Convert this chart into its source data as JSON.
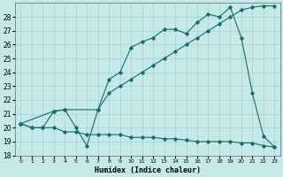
{
  "xlabel": "Humidex (Indice chaleur)",
  "bg_color": "#c5e8e8",
  "grid_color": "#aacfcf",
  "line_color": "#1a6b6b",
  "xlim": [
    -0.5,
    23.5
  ],
  "ylim": [
    18,
    29
  ],
  "xticks": [
    0,
    1,
    2,
    3,
    4,
    5,
    6,
    7,
    8,
    9,
    10,
    11,
    12,
    13,
    14,
    15,
    16,
    17,
    18,
    19,
    20,
    21,
    22,
    23
  ],
  "yticks": [
    18,
    19,
    20,
    21,
    22,
    23,
    24,
    25,
    26,
    27,
    28
  ],
  "line1_x": [
    0,
    1,
    2,
    3,
    4,
    5,
    6,
    7,
    8,
    9,
    10,
    11,
    12,
    13,
    14,
    15,
    16,
    17,
    18,
    19,
    20,
    21,
    22,
    23
  ],
  "line1_y": [
    20.3,
    20.0,
    20.0,
    21.2,
    21.3,
    20.0,
    18.7,
    21.3,
    23.5,
    24.0,
    25.8,
    26.2,
    26.5,
    27.1,
    27.1,
    26.8,
    27.6,
    28.2,
    28.0,
    28.7,
    26.5,
    22.5,
    19.4,
    18.6
  ],
  "line2_x": [
    0,
    3,
    4,
    7,
    8,
    9,
    10,
    11,
    12,
    13,
    14,
    15,
    16,
    17,
    18,
    19,
    20,
    21,
    22,
    23
  ],
  "line2_y": [
    20.3,
    21.2,
    21.3,
    21.3,
    22.5,
    23.0,
    23.5,
    24.0,
    24.5,
    25.0,
    25.5,
    26.0,
    26.5,
    27.0,
    27.5,
    28.0,
    28.5,
    28.7,
    28.8,
    28.8
  ],
  "line3_x": [
    0,
    1,
    2,
    3,
    4,
    5,
    6,
    7,
    8,
    9,
    10,
    11,
    12,
    13,
    14,
    15,
    16,
    17,
    18,
    19,
    20,
    21,
    22,
    23
  ],
  "line3_y": [
    20.3,
    20.0,
    20.0,
    20.0,
    19.7,
    19.7,
    19.5,
    19.5,
    19.5,
    19.5,
    19.3,
    19.3,
    19.3,
    19.2,
    19.2,
    19.1,
    19.0,
    19.0,
    19.0,
    19.0,
    18.9,
    18.9,
    18.7,
    18.6
  ]
}
